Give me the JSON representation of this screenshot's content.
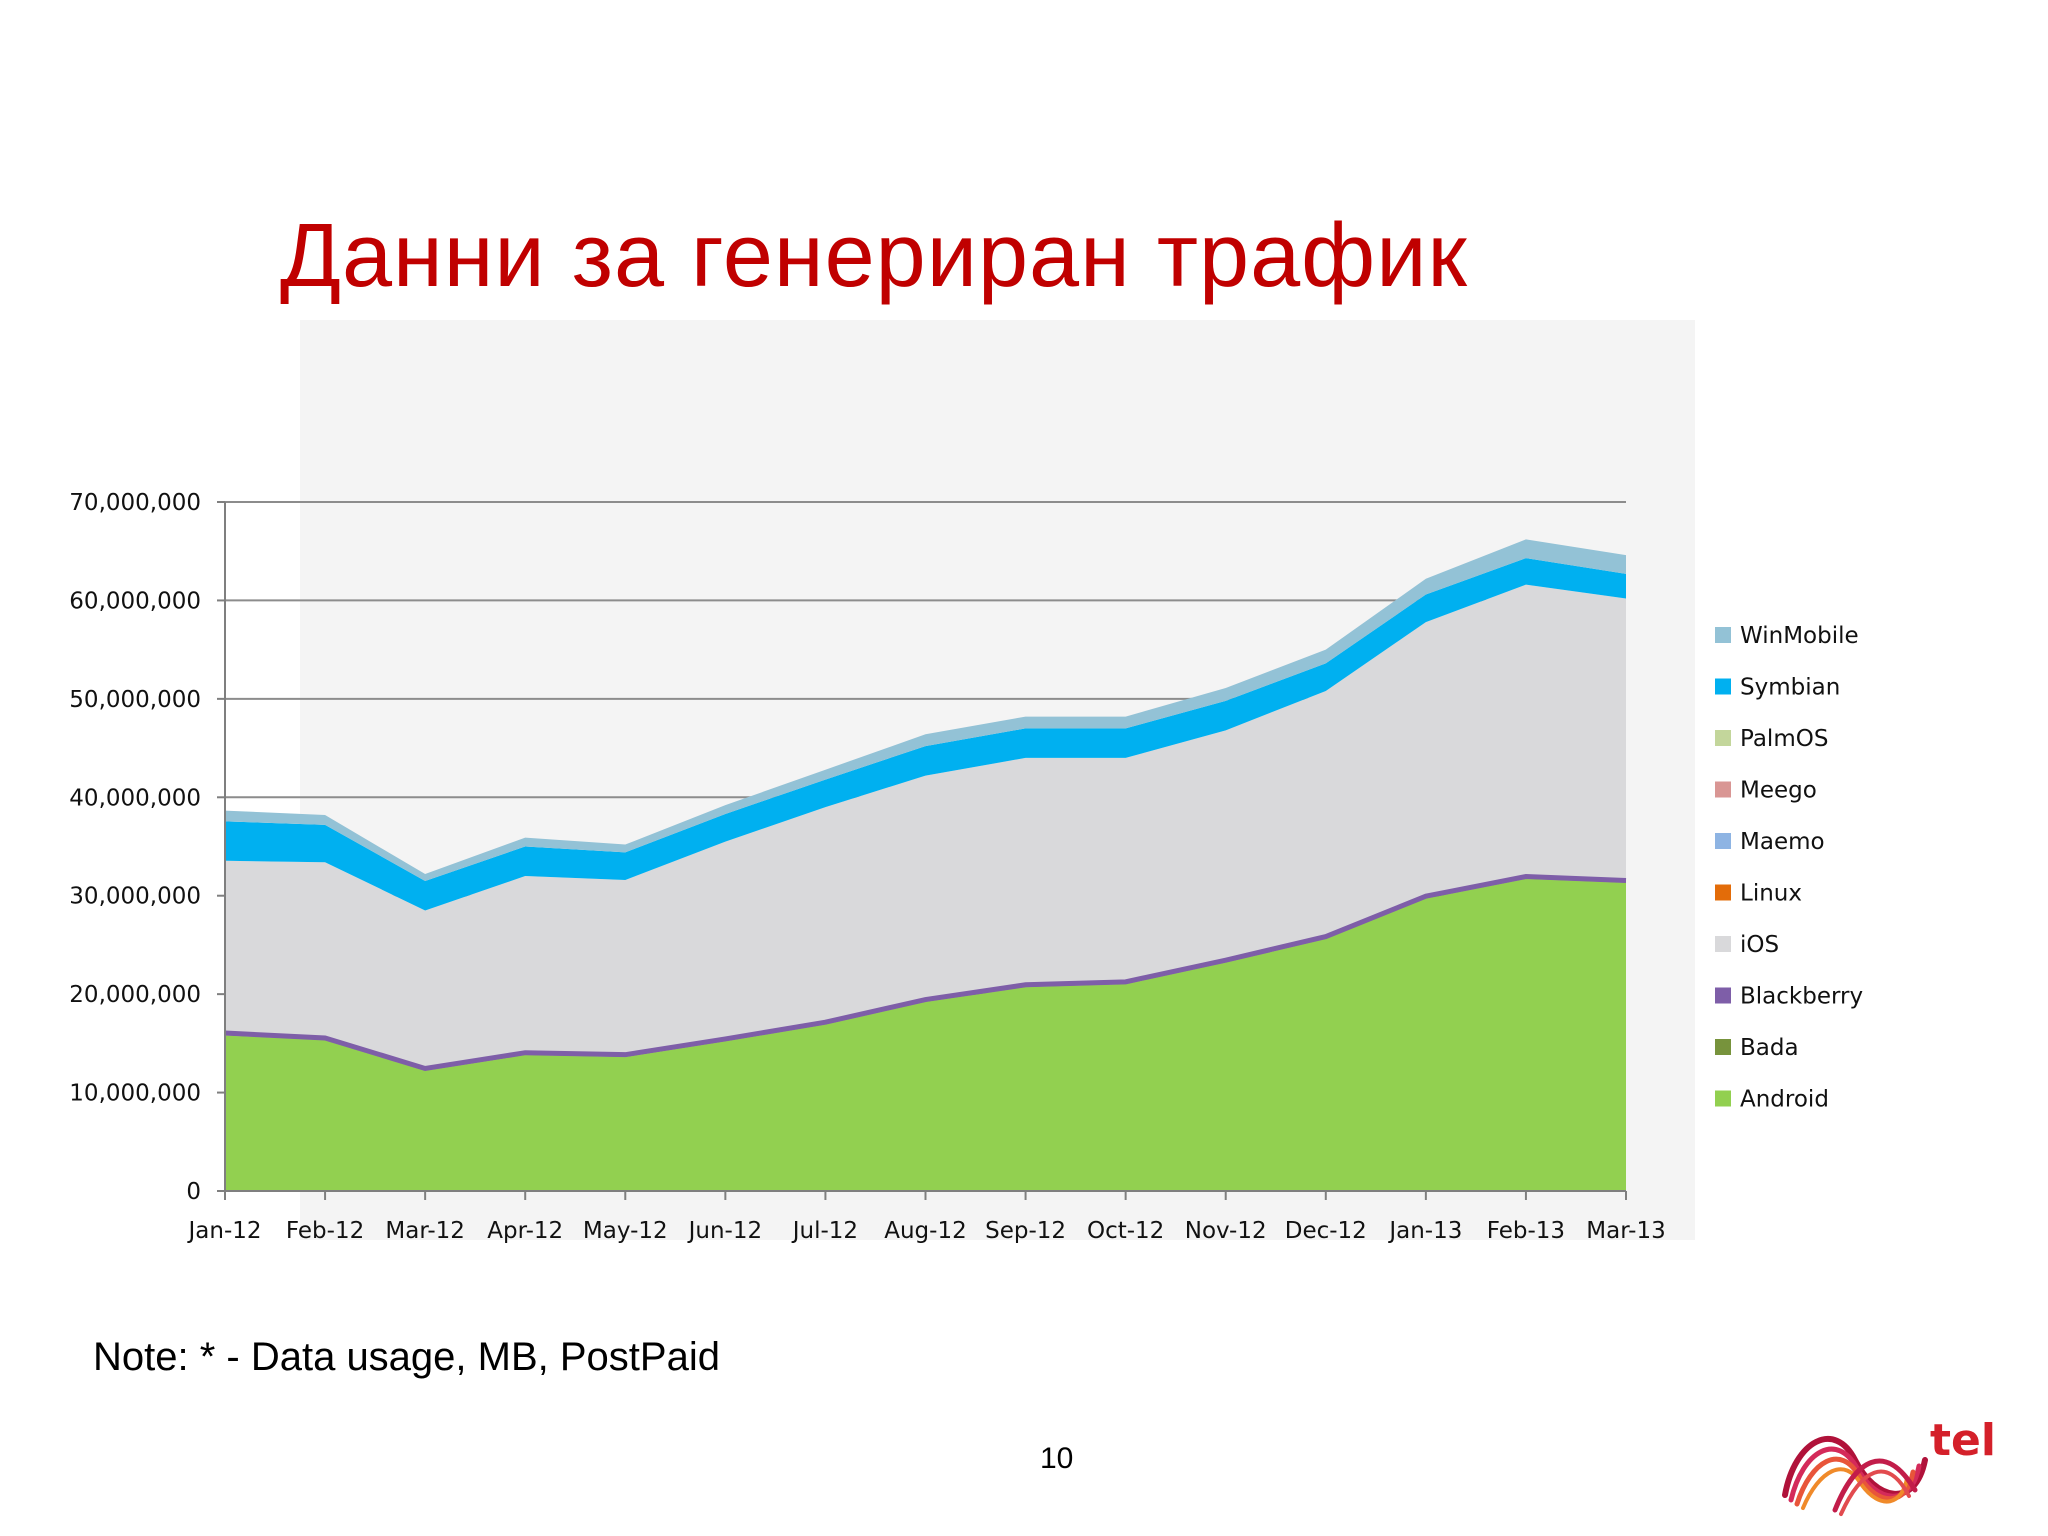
{
  "title": "Данни за генериран трафик",
  "note": "Note: * - Data usage, MB, PostPaid",
  "page_number": "10",
  "logo_text": "tel",
  "colors": {
    "title": "#c00000",
    "Android": "#92d050",
    "Bada": "#77933c",
    "Blackberry": "#7e5ea8",
    "iOS": "#d9d9db",
    "Linux": "#e36c09",
    "Maemo": "#8eb4e3",
    "Meego": "#d99694",
    "PalmOS": "#c3d69b",
    "Symbian": "#00b0f0",
    "WinMobile": "#93c2d6"
  },
  "chart_data": {
    "type": "area",
    "stacked": true,
    "title": "",
    "xlabel": "",
    "ylabel": "",
    "categories": [
      "Jan-12",
      "Feb-12",
      "Mar-12",
      "Apr-12",
      "May-12",
      "Jun-12",
      "Jul-12",
      "Aug-12",
      "Sep-12",
      "Oct-12",
      "Nov-12",
      "Dec-12",
      "Jan-13",
      "Feb-13",
      "Mar-13"
    ],
    "ylim": [
      0,
      70000000
    ],
    "yticks": [
      0,
      10000000,
      20000000,
      30000000,
      40000000,
      50000000,
      60000000,
      70000000
    ],
    "ytick_labels": [
      "0",
      "10,000,000",
      "20,000,000",
      "30,000,000",
      "40,000,000",
      "50,000,000",
      "60,000,000",
      "70,000,000"
    ],
    "grid": true,
    "legend_position": "right",
    "legend_order": [
      "WinMobile",
      "Symbian",
      "PalmOS",
      "Meego",
      "Maemo",
      "Linux",
      "iOS",
      "Blackberry",
      "Bada",
      "Android"
    ],
    "series": [
      {
        "name": "Android",
        "values": [
          15800000,
          15300000,
          12200000,
          13800000,
          13600000,
          15200000,
          16900000,
          19200000,
          20700000,
          21000000,
          23200000,
          25600000,
          29700000,
          31700000,
          31300000
        ]
      },
      {
        "name": "Bada",
        "values": [
          50000,
          50000,
          50000,
          50000,
          50000,
          50000,
          50000,
          50000,
          50000,
          50000,
          50000,
          50000,
          50000,
          50000,
          50000
        ]
      },
      {
        "name": "Blackberry",
        "values": [
          400000,
          400000,
          400000,
          400000,
          400000,
          400000,
          400000,
          400000,
          400000,
          400000,
          400000,
          400000,
          400000,
          400000,
          400000
        ]
      },
      {
        "name": "iOS",
        "values": [
          17300000,
          17650000,
          15850000,
          17750000,
          17550000,
          19850000,
          21650000,
          22550000,
          22850000,
          22550000,
          23150000,
          24750000,
          27650000,
          29450000,
          28450000
        ]
      },
      {
        "name": "Linux",
        "values": [
          0,
          0,
          0,
          0,
          0,
          0,
          0,
          0,
          0,
          0,
          0,
          0,
          0,
          0,
          0
        ]
      },
      {
        "name": "Maemo",
        "values": [
          0,
          0,
          0,
          0,
          0,
          0,
          0,
          0,
          0,
          0,
          0,
          0,
          0,
          0,
          0
        ]
      },
      {
        "name": "Meego",
        "values": [
          0,
          0,
          0,
          0,
          0,
          0,
          0,
          0,
          0,
          0,
          0,
          0,
          0,
          0,
          0
        ]
      },
      {
        "name": "PalmOS",
        "values": [
          0,
          0,
          0,
          0,
          0,
          0,
          0,
          0,
          0,
          0,
          0,
          0,
          0,
          0,
          0
        ]
      },
      {
        "name": "Symbian",
        "values": [
          4000000,
          3800000,
          3000000,
          3000000,
          2800000,
          2800000,
          2800000,
          3000000,
          3000000,
          3000000,
          3000000,
          2800000,
          2800000,
          2700000,
          2500000
        ]
      },
      {
        "name": "WinMobile",
        "values": [
          1100000,
          1000000,
          700000,
          900000,
          800000,
          900000,
          1000000,
          1200000,
          1200000,
          1200000,
          1300000,
          1400000,
          1600000,
          1900000,
          1900000
        ]
      }
    ]
  }
}
